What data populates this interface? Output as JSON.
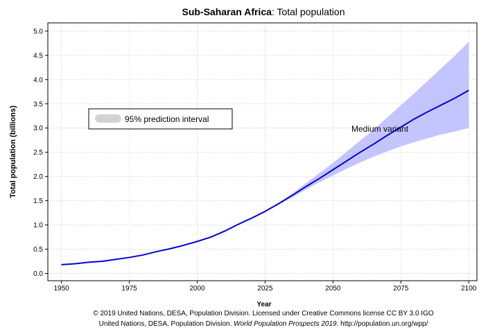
{
  "chart_data": {
    "type": "line",
    "title_region": "Sub-Saharan Africa",
    "title_rest": ": Total population",
    "xlabel": "Year",
    "ylabel": "Total population (billions)",
    "x": [
      1950,
      1955,
      1960,
      1965,
      1970,
      1975,
      1980,
      1985,
      1990,
      1995,
      2000,
      2005,
      2010,
      2015,
      2020,
      2025,
      2030,
      2035,
      2040,
      2045,
      2050,
      2055,
      2060,
      2065,
      2070,
      2075,
      2080,
      2085,
      2090,
      2095,
      2100
    ],
    "series": [
      {
        "name": "Medium variant",
        "color": "#0000dd",
        "values": [
          0.18,
          0.2,
          0.23,
          0.25,
          0.29,
          0.33,
          0.38,
          0.45,
          0.51,
          0.58,
          0.66,
          0.75,
          0.87,
          1.01,
          1.14,
          1.28,
          1.44,
          1.61,
          1.79,
          1.96,
          2.14,
          2.32,
          2.5,
          2.67,
          2.85,
          3.02,
          3.19,
          3.34,
          3.48,
          3.62,
          3.78
        ]
      }
    ],
    "interval": {
      "name": "95% prediction interval",
      "color": "#c4c4ff",
      "legend_color": "#d3d3d3",
      "x": [
        2020,
        2025,
        2030,
        2035,
        2040,
        2045,
        2050,
        2055,
        2060,
        2065,
        2070,
        2075,
        2080,
        2085,
        2090,
        2095,
        2100
      ],
      "lower": [
        1.14,
        1.27,
        1.42,
        1.57,
        1.73,
        1.88,
        2.02,
        2.16,
        2.29,
        2.41,
        2.52,
        2.62,
        2.71,
        2.79,
        2.87,
        2.93,
        3.0
      ],
      "upper": [
        1.14,
        1.29,
        1.46,
        1.65,
        1.86,
        2.07,
        2.28,
        2.51,
        2.74,
        2.97,
        3.22,
        3.47,
        3.72,
        3.98,
        4.24,
        4.5,
        4.78
      ]
    },
    "xlim": [
      1945,
      2103
    ],
    "ylim": [
      -0.15,
      5.17
    ],
    "xticks": [
      1950,
      1975,
      2000,
      2025,
      2050,
      2075,
      2100
    ],
    "yticks": [
      {
        "value": 0,
        "label": "0.0"
      },
      0.5,
      {
        "value": 1,
        "label": "1.0"
      },
      1.5,
      {
        "value": 2,
        "label": "2.0"
      },
      2.5,
      {
        "value": 3,
        "label": "3.0"
      },
      3.5,
      {
        "value": 4,
        "label": "4.0"
      },
      4.5,
      {
        "value": 5,
        "label": "5.0"
      }
    ],
    "grid": true,
    "footer_line1": "© 2019 United Nations, DESA, Population Division. Licensed under Creative Commons license CC BY 3.0 IGO",
    "footer_line2_a": "United Nations, DESA, Population Division. ",
    "footer_line2_b": "World Population Prospects 2019",
    "footer_line2_c": ". http://population.un.org/wpp/"
  }
}
